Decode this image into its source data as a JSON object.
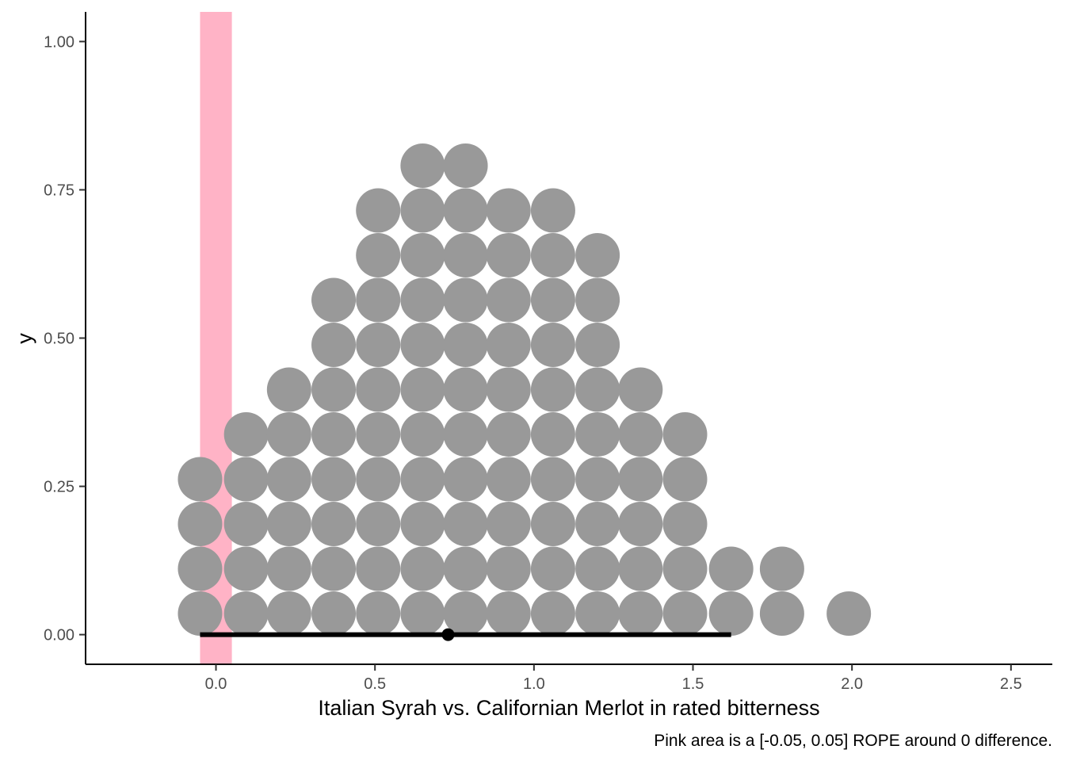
{
  "chart_data": {
    "type": "dotplot",
    "title": "",
    "xlabel": "Italian Syrah vs. Californian Merlot in rated bitterness",
    "ylabel": "y",
    "caption": "Pink area is a [-0.05, 0.05] ROPE around 0 difference.",
    "xlim": [
      -0.41,
      2.63
    ],
    "ylim": [
      -0.05,
      1.05
    ],
    "x_ticks": [
      {
        "value": 0.0,
        "label": "0.0"
      },
      {
        "value": 0.5,
        "label": "0.5"
      },
      {
        "value": 1.0,
        "label": "1.0"
      },
      {
        "value": 1.5,
        "label": "1.5"
      },
      {
        "value": 2.0,
        "label": "2.0"
      },
      {
        "value": 2.5,
        "label": "2.5"
      }
    ],
    "y_ticks": [
      {
        "value": 0.0,
        "label": "0.00"
      },
      {
        "value": 0.25,
        "label": "0.25"
      },
      {
        "value": 0.5,
        "label": "0.50"
      },
      {
        "value": 0.75,
        "label": "0.75"
      },
      {
        "value": 1.0,
        "label": "1.00"
      }
    ],
    "grid": false,
    "rope": {
      "low": -0.05,
      "high": 0.05,
      "color": "#ffb3c6"
    },
    "dot_color": "#999999",
    "dot_columns": [
      {
        "x": -0.05,
        "count": 4
      },
      {
        "x": 0.095,
        "count": 5
      },
      {
        "x": 0.23,
        "count": 6
      },
      {
        "x": 0.37,
        "count": 8
      },
      {
        "x": 0.51,
        "count": 10
      },
      {
        "x": 0.65,
        "count": 11
      },
      {
        "x": 0.785,
        "count": 11
      },
      {
        "x": 0.92,
        "count": 10
      },
      {
        "x": 1.06,
        "count": 10
      },
      {
        "x": 1.2,
        "count": 9
      },
      {
        "x": 1.335,
        "count": 6
      },
      {
        "x": 1.475,
        "count": 5
      },
      {
        "x": 1.62,
        "count": 2
      },
      {
        "x": 1.78,
        "count": 2
      },
      {
        "x": 1.99,
        "count": 1
      }
    ],
    "interval": {
      "low": -0.05,
      "high": 1.62,
      "point": 0.73,
      "y": 0.0,
      "color": "#000000"
    }
  }
}
